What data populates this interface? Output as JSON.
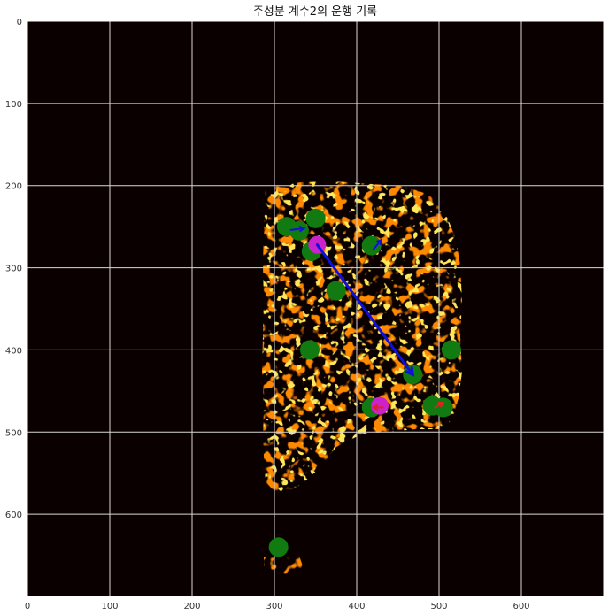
{
  "chart_data": {
    "type": "scatter",
    "title": "주성분 계수2의 운행 기록",
    "xlabel": "",
    "ylabel": "",
    "xlim": [
      0,
      700
    ],
    "ylim": [
      700,
      0
    ],
    "grid": true,
    "xticks": [
      "0",
      "100",
      "200",
      "300",
      "400",
      "500",
      "600"
    ],
    "yticks": [
      "0",
      "100",
      "200",
      "300",
      "400",
      "500",
      "600"
    ],
    "colors": {
      "background": "#0b0000",
      "grid": "#d8d8d8",
      "green": "#117a11",
      "magenta": "#cc22cc",
      "blue": "#1010dd",
      "red": "#e02222",
      "heat": "#ff3300",
      "hot": "#ffcc00"
    },
    "green_points": [
      [
        315,
        250
      ],
      [
        330,
        255
      ],
      [
        350,
        240
      ],
      [
        345,
        280
      ],
      [
        375,
        328
      ],
      [
        418,
        273
      ],
      [
        343,
        400
      ],
      [
        468,
        430
      ],
      [
        515,
        400
      ],
      [
        418,
        470
      ],
      [
        492,
        468
      ],
      [
        505,
        470
      ],
      [
        305,
        640
      ]
    ],
    "magenta_points": [
      [
        352,
        272
      ],
      [
        428,
        468
      ]
    ],
    "trajectory": [
      {
        "from": [
          352,
          272
        ],
        "to": [
          468,
          430
        ],
        "color": "blue"
      }
    ],
    "small_arrows": [
      {
        "from": [
          320,
          254
        ],
        "to": [
          336,
          252
        ],
        "color": "blue"
      },
      {
        "from": [
          420,
          278
        ],
        "to": [
          430,
          266
        ],
        "color": "blue"
      },
      {
        "from": [
          432,
          470
        ],
        "to": [
          420,
          470
        ],
        "color": "red"
      },
      {
        "from": [
          495,
          470
        ],
        "to": [
          505,
          464
        ],
        "color": "red"
      }
    ]
  }
}
